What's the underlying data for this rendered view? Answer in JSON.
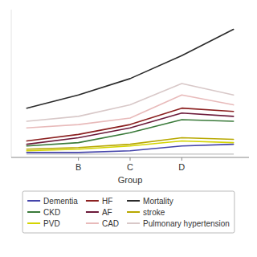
{
  "chart_data": {
    "type": "line",
    "x": [
      0,
      1,
      2,
      3,
      4
    ],
    "series": [
      {
        "name": "Dementia",
        "color": "#4444aa",
        "values": [
          3,
          3,
          4,
          7,
          8
        ]
      },
      {
        "name": "CKD",
        "color": "#3a7a3a",
        "values": [
          7,
          9,
          15,
          23,
          22
        ]
      },
      {
        "name": "PVD",
        "color": "#d4d400",
        "values": [
          4,
          5,
          7,
          10,
          9
        ]
      },
      {
        "name": "HF",
        "color": "#8b2020",
        "values": [
          10,
          14,
          20,
          30,
          28
        ]
      },
      {
        "name": "AF",
        "color": "#6b1a3a",
        "values": [
          8,
          12,
          18,
          27,
          25
        ]
      },
      {
        "name": "CAD",
        "color": "#e8baba",
        "values": [
          18,
          20,
          24,
          38,
          32
        ]
      },
      {
        "name": "Mortality",
        "color": "#2a2a2a",
        "values": [
          30,
          38,
          48,
          62,
          78
        ]
      },
      {
        "name": "stroke",
        "color": "#b8a800",
        "values": [
          5,
          6,
          8,
          12,
          11
        ]
      },
      {
        "name": "Pulmonary hypertension",
        "color": "#d8c8c8",
        "values": [
          22,
          25,
          32,
          45,
          38
        ]
      },
      {
        "color": "#b0b0b0",
        "values": [
          2,
          2,
          2,
          2,
          2
        ]
      }
    ],
    "x_label": "Group",
    "xlim": [
      -0.3,
      4.3
    ],
    "xticks": [
      {
        "value": 1,
        "label": "B"
      },
      {
        "value": 2,
        "label": "C"
      },
      {
        "value": 3,
        "label": "D"
      }
    ],
    "ylim": [
      0,
      90
    ],
    "tick_labels": "x",
    "grid": false,
    "legend": "bottom"
  }
}
